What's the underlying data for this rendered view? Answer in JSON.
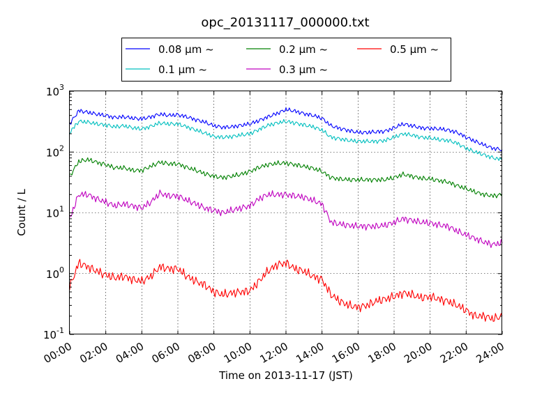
{
  "chart_data": {
    "type": "line",
    "title": "opc_20131117_000000.txt",
    "xlabel": "Time on 2013-11-17 (JST)",
    "ylabel": "Count / L",
    "xlim": [
      0,
      24
    ],
    "ylim": [
      0.1,
      1000
    ],
    "yscale": "log",
    "grid": true,
    "legend_position": "top-outside",
    "x_tick_labels": [
      "00:00",
      "02:00",
      "04:00",
      "06:00",
      "08:00",
      "10:00",
      "12:00",
      "14:00",
      "16:00",
      "18:00",
      "20:00",
      "22:00",
      "24:00"
    ],
    "y_tick_labels": [
      {
        "base": "10",
        "exp": "-1"
      },
      {
        "base": "10",
        "exp": "0"
      },
      {
        "base": "10",
        "exp": "1"
      },
      {
        "base": "10",
        "exp": "2"
      },
      {
        "base": "10",
        "exp": "3"
      }
    ],
    "x": [
      0,
      0.5,
      1,
      1.5,
      2,
      2.5,
      3,
      3.5,
      4,
      4.5,
      5,
      5.5,
      6,
      6.5,
      7,
      7.5,
      8,
      8.5,
      9,
      9.5,
      10,
      10.5,
      11,
      11.5,
      12,
      12.5,
      13,
      13.5,
      14,
      14.5,
      15,
      15.5,
      16,
      16.5,
      17,
      17.5,
      18,
      18.5,
      19,
      19.5,
      20,
      20.5,
      21,
      21.5,
      22,
      22.5,
      23,
      23.5,
      24
    ],
    "series": [
      {
        "name": "0.08 μm ~",
        "color": "#0000ff",
        "values": [
          290,
          480,
          450,
          420,
          400,
          370,
          380,
          360,
          350,
          380,
          420,
          400,
          410,
          380,
          340,
          310,
          270,
          255,
          260,
          275,
          290,
          330,
          380,
          430,
          500,
          470,
          430,
          400,
          360,
          270,
          245,
          225,
          210,
          210,
          215,
          220,
          250,
          290,
          270,
          250,
          245,
          240,
          230,
          210,
          175,
          150,
          130,
          115,
          110
        ]
      },
      {
        "name": "0.1 μm ~",
        "color": "#00bfbf",
        "values": [
          210,
          320,
          310,
          290,
          280,
          260,
          270,
          250,
          240,
          265,
          300,
          290,
          290,
          260,
          230,
          205,
          180,
          175,
          180,
          190,
          200,
          235,
          275,
          300,
          320,
          300,
          280,
          260,
          230,
          175,
          165,
          155,
          150,
          150,
          150,
          155,
          175,
          200,
          190,
          175,
          170,
          160,
          155,
          140,
          115,
          100,
          90,
          80,
          75
        ]
      },
      {
        "name": "0.2 μm ~",
        "color": "#008000",
        "values": [
          40,
          70,
          75,
          68,
          62,
          55,
          55,
          50,
          50,
          58,
          68,
          64,
          64,
          56,
          50,
          44,
          40,
          38,
          40,
          43,
          48,
          56,
          62,
          65,
          66,
          62,
          58,
          54,
          48,
          38,
          36,
          35,
          35,
          35,
          35,
          35,
          38,
          43,
          40,
          37,
          36,
          34,
          32,
          28,
          25,
          22,
          20,
          19,
          20
        ]
      },
      {
        "name": "0.3 μm ~",
        "color": "#bf00bf",
        "values": [
          8,
          20,
          20,
          17,
          15,
          13,
          14,
          13,
          12,
          15,
          21,
          19,
          19,
          16,
          14,
          12,
          11,
          10,
          11,
          12,
          13,
          17,
          20,
          20,
          20,
          19,
          18,
          16,
          14,
          7,
          6.5,
          6.2,
          6,
          6,
          6,
          6.2,
          7,
          8,
          7.5,
          7,
          6.8,
          6.3,
          6,
          5,
          4.3,
          3.8,
          3.3,
          3,
          3.2
        ]
      },
      {
        "name": "0.5 μm ~",
        "color": "#ff0000",
        "values": [
          0.6,
          1.5,
          1.3,
          1.1,
          0.95,
          0.85,
          0.9,
          0.8,
          0.75,
          0.9,
          1.3,
          1.2,
          1.2,
          0.9,
          0.75,
          0.65,
          0.5,
          0.45,
          0.48,
          0.5,
          0.52,
          0.75,
          1.1,
          1.4,
          1.5,
          1.2,
          1.1,
          0.9,
          0.8,
          0.45,
          0.35,
          0.3,
          0.28,
          0.3,
          0.35,
          0.38,
          0.42,
          0.48,
          0.45,
          0.4,
          0.42,
          0.38,
          0.35,
          0.3,
          0.25,
          0.2,
          0.2,
          0.18,
          0.2
        ]
      }
    ]
  }
}
